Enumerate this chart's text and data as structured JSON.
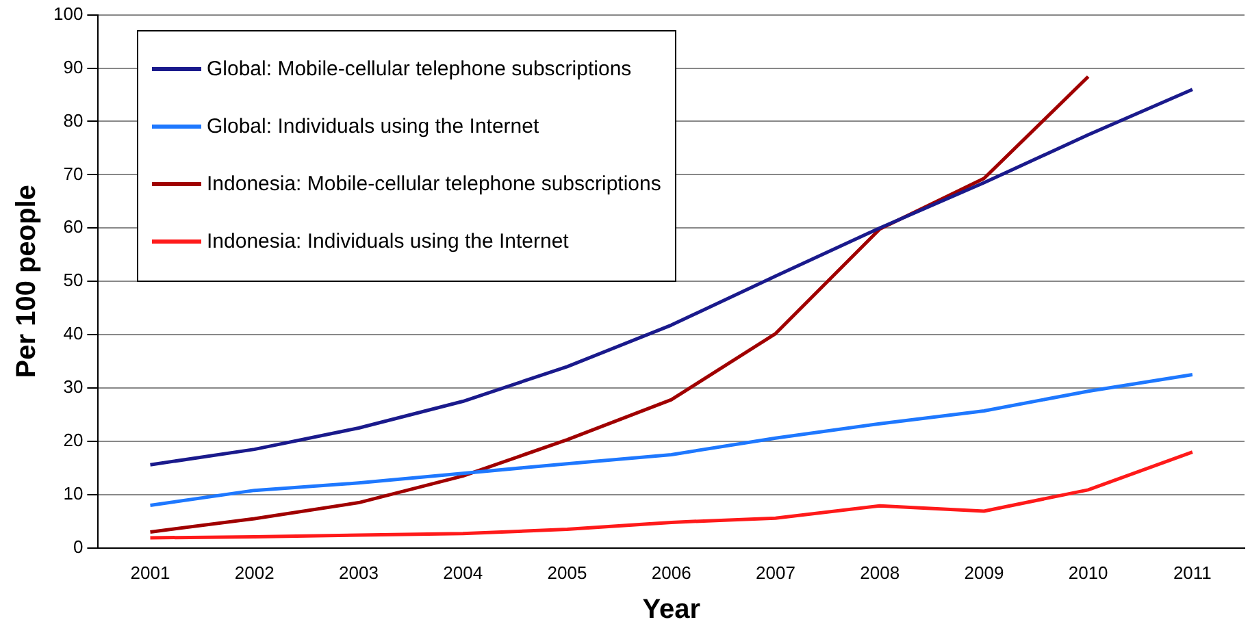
{
  "chart_data": {
    "type": "line",
    "xlabel": "Year",
    "ylabel": "Per 100 people",
    "categories": [
      "2001",
      "2002",
      "2003",
      "2004",
      "2005",
      "2006",
      "2007",
      "2008",
      "2009",
      "2010",
      "2011"
    ],
    "ylim": [
      0,
      100
    ],
    "yticks": [
      0,
      10,
      20,
      30,
      40,
      50,
      60,
      70,
      80,
      90,
      100
    ],
    "grid": "y",
    "legend": "top left",
    "marker": "none",
    "line_style": "solid",
    "series": [
      {
        "name": "Global: Mobile-cellular telephone subscriptions",
        "color": "#1a1a8c",
        "values": [
          15.6,
          18.5,
          22.5,
          27.5,
          34,
          41.8,
          51,
          60,
          68.5,
          77.5,
          86
        ]
      },
      {
        "name": "Global: Individuals using the Internet",
        "color": "#1e78ff",
        "values": [
          8,
          10.8,
          12.2,
          14,
          15.8,
          17.5,
          20.6,
          23.3,
          25.7,
          29.4,
          32.5
        ]
      },
      {
        "name": "Indonesia: Mobile-cellular telephone subscriptions",
        "color": "#a00000",
        "values": [
          3,
          5.5,
          8.5,
          13.5,
          20.3,
          27.8,
          40.2,
          59.8,
          69.3,
          88.4,
          null
        ]
      },
      {
        "name": "Indonesia: Individuals using the Internet",
        "color": "#ff1a1a",
        "values": [
          1.9,
          2.1,
          2.4,
          2.7,
          3.5,
          4.8,
          5.6,
          7.9,
          6.9,
          10.9,
          18
        ]
      }
    ]
  }
}
